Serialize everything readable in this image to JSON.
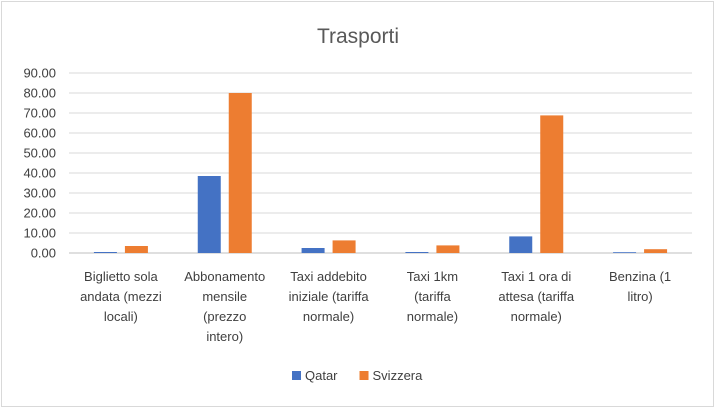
{
  "chart_data": {
    "type": "bar",
    "title": "Trasporti",
    "xlabel": "",
    "ylabel": "",
    "ylim": [
      0,
      90
    ],
    "yticks": [
      "0.00",
      "10.00",
      "20.00",
      "30.00",
      "40.00",
      "50.00",
      "60.00",
      "70.00",
      "80.00",
      "90.00"
    ],
    "grid": true,
    "legend_position": "bottom",
    "categories": [
      [
        "Biglietto sola",
        "andata (mezzi",
        "locali)"
      ],
      [
        "Abbonamento",
        "mensile",
        "(prezzo",
        "intero)"
      ],
      [
        "Taxi addebito",
        "iniziale (tariffa",
        "normale)"
      ],
      [
        "Taxi 1km",
        "(tariffa",
        "normale)"
      ],
      [
        "Taxi 1 ora di",
        "attesa (tariffa",
        "normale)"
      ],
      [
        "Benzina (1",
        "litro)"
      ]
    ],
    "series": [
      {
        "name": "Qatar",
        "color": "#4472c4",
        "values": [
          0.5,
          38.5,
          2.5,
          0.5,
          8.3,
          0.4
        ]
      },
      {
        "name": "Svizzera",
        "color": "#ed7d31",
        "values": [
          3.5,
          80.0,
          6.3,
          3.8,
          68.8,
          1.9
        ]
      }
    ]
  }
}
